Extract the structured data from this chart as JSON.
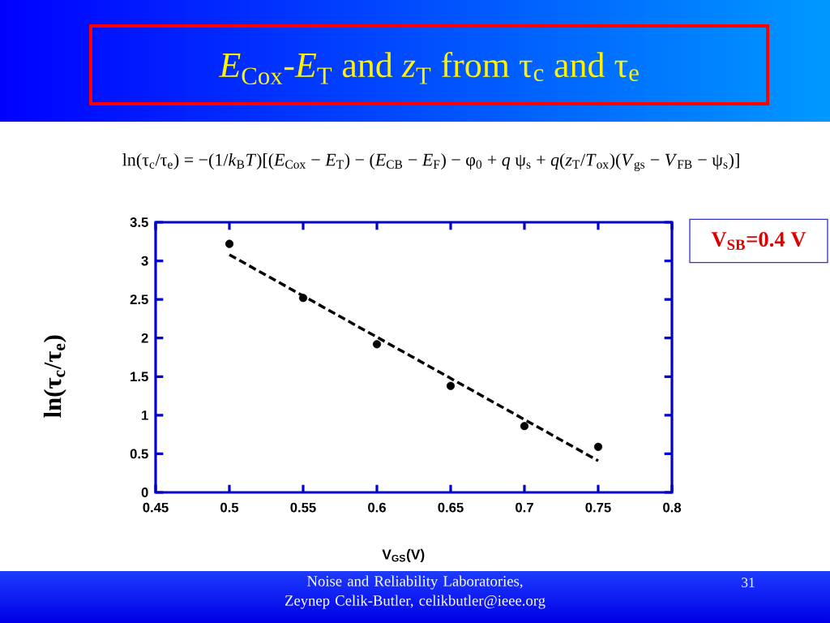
{
  "chart_data": {
    "type": "scatter",
    "title": "*E*$_{Cox}$-*E*$_{T}$ and *z*$_{T}$ from τ$_{c}$ and τ$_{e}$",
    "xlabel": "V$_{GS}$(V)",
    "ylabel": "ln(τ$_{c}$/τ$_{e}$)",
    "annotations": [
      "ln(τ$_{c}$/τ$_{e}$) = −(1/*k*$_{B}$*T*)[(*E*$_{Cox}$ − *E*$_{T}$) − (*E*$_{CB}$ − *E*$_{F}$) − φ$_{0}$ + *q* ψ$_{s}$ + *q*(*z*$_{T}$/*T*$_{ox}$)(*V*$_{gs}$ − *V*$_{FB}$ − ψ$_{s}$)]",
      "V$_{SB}$=0.4 V",
      "Noise and Reliability Laboratories, Zeynep Celik-Butler, celikbutler@ieee.org",
      "31"
    ],
    "series": [
      {
        "color": "#000000",
        "marker": "circle",
        "x": [
          0.5,
          0.55,
          0.6,
          0.65,
          0.7,
          0.75
        ],
        "values": [
          3.22,
          2.52,
          1.92,
          1.38,
          0.86,
          0.59
        ]
      },
      {
        "type": "line",
        "color": "#000000",
        "marker": "none",
        "line_style": "dashed",
        "x": [
          0.5,
          0.75
        ],
        "values": [
          3.08,
          0.41
        ]
      }
    ],
    "xlim": [
      0.45,
      0.8
    ],
    "ylim": [
      0,
      3.5
    ],
    "xticks": [
      0.45,
      0.5,
      0.55,
      0.6,
      0.65,
      0.7,
      0.75,
      0.8
    ],
    "yticks": [
      0,
      0.5,
      1,
      1.5,
      2,
      2.5,
      3,
      3.5
    ]
  }
}
